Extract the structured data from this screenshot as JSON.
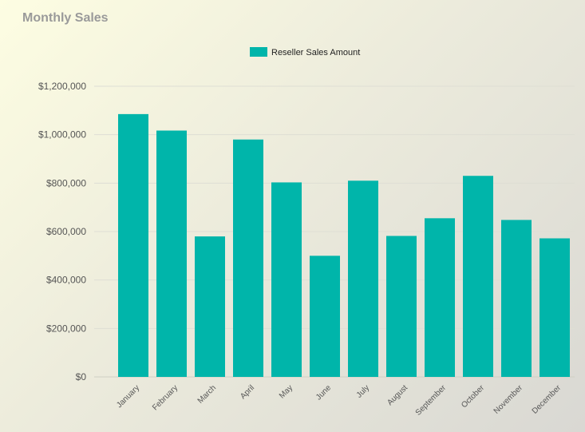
{
  "chart_data": {
    "type": "bar",
    "title": "Monthly Sales",
    "xlabel": "",
    "ylabel": "",
    "categories": [
      "January",
      "February",
      "March",
      "April",
      "May",
      "June",
      "July",
      "August",
      "September",
      "October",
      "November",
      "December"
    ],
    "series": [
      {
        "name": "Reseller Sales Amount",
        "color": "#00b5aa",
        "values": [
          1085000,
          1017000,
          580000,
          980000,
          803000,
          500000,
          810000,
          582000,
          655000,
          830000,
          648000,
          572000
        ]
      }
    ],
    "ylim": [
      0,
      1200000
    ],
    "yticks": [
      {
        "value": 0,
        "label": "$0"
      },
      {
        "value": 200000,
        "label": "$200,000"
      },
      {
        "value": 400000,
        "label": "$400,000"
      },
      {
        "value": 600000,
        "label": "$600,000"
      },
      {
        "value": 800000,
        "label": "$800,000"
      },
      {
        "value": 1000000,
        "label": "$1,000,000"
      },
      {
        "value": 1200000,
        "label": "$1,200,000"
      }
    ],
    "grid": true,
    "legend_position": "top-center"
  }
}
